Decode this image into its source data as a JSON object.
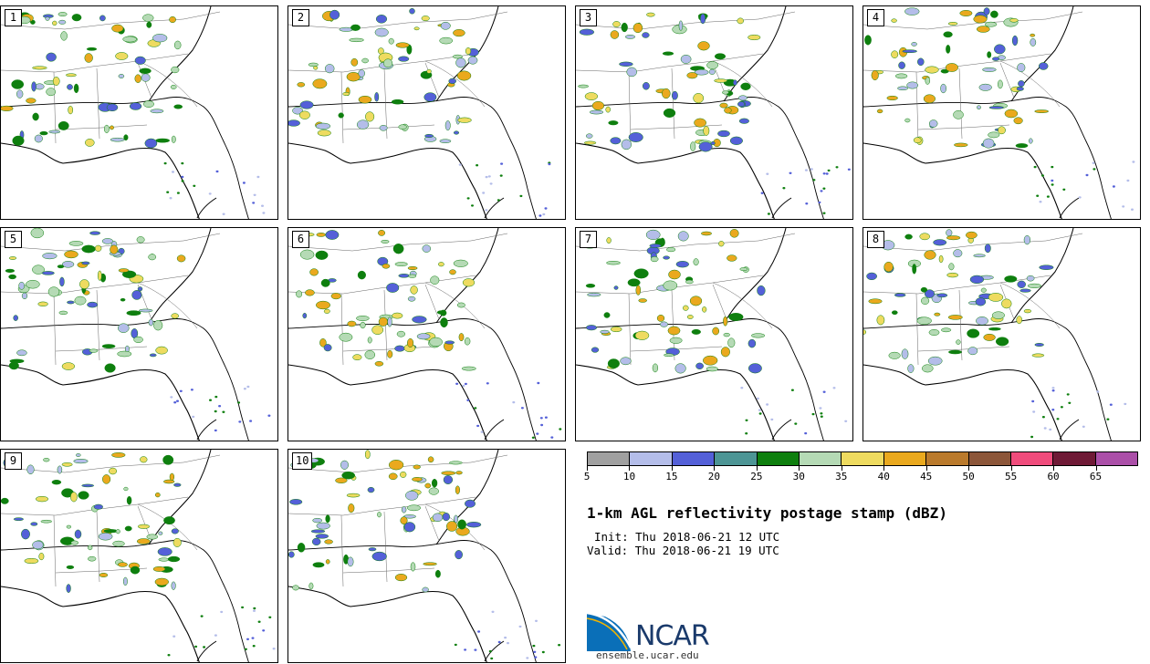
{
  "panels": [
    {
      "label": "1"
    },
    {
      "label": "2"
    },
    {
      "label": "3"
    },
    {
      "label": "4"
    },
    {
      "label": "5"
    },
    {
      "label": "6"
    },
    {
      "label": "7"
    },
    {
      "label": "8"
    },
    {
      "label": "9"
    },
    {
      "label": "10"
    }
  ],
  "colorbar": {
    "colors": [
      "#a0a0a0",
      "#b4bde9",
      "#5460d8",
      "#4d9595",
      "#0e7f0e",
      "#b5dab5",
      "#eedb60",
      "#eaa91e",
      "#ba7a2c",
      "#8c5639",
      "#f04c7c",
      "#6f1a36",
      "#ab4fa8"
    ],
    "tick_labels": [
      "5",
      "10",
      "15",
      "20",
      "25",
      "30",
      "35",
      "40",
      "45",
      "50",
      "55",
      "60",
      "65"
    ]
  },
  "info": {
    "title": "1-km AGL reflectivity postage stamp (dBZ)",
    "init": "Init: Thu 2018-06-21 12 UTC",
    "valid": "Valid: Thu 2018-06-21 19 UTC"
  },
  "logo": {
    "name": "NCAR",
    "url": "ensemble.ucar.edu"
  }
}
